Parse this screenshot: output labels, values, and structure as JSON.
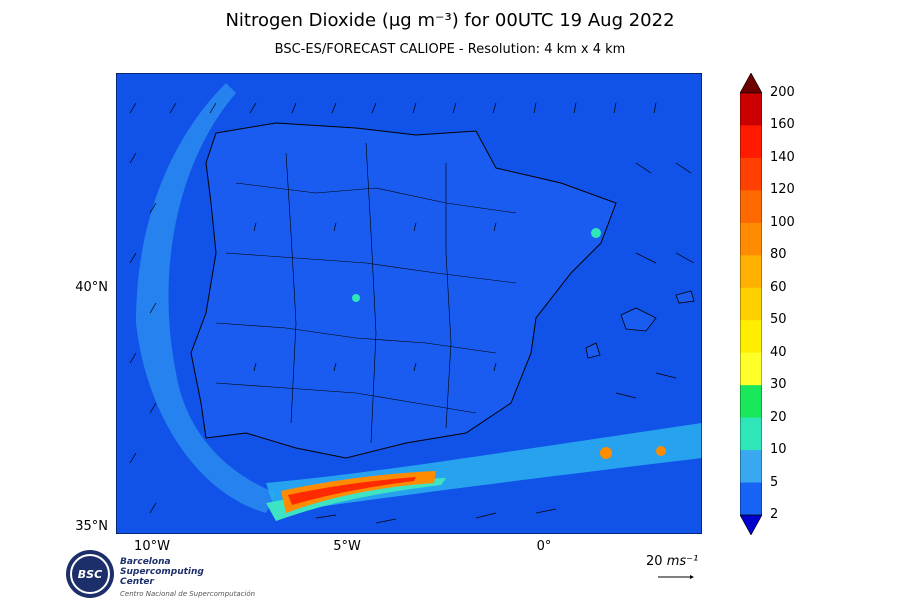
{
  "title": "Nitrogen Dioxide (μg m⁻³) for 00UTC 19 Aug 2022",
  "subtitle": "BSC-ES/FORECAST  CALIOPE - Resolution: 4 km x 4 km",
  "axes": {
    "lat_labels": [
      "40°N",
      "35°N"
    ],
    "lon_labels": [
      "10°W",
      "5°W",
      "0°"
    ]
  },
  "colorbar": {
    "ticks": [
      "200",
      "160",
      "140",
      "120",
      "100",
      "80",
      "60",
      "50",
      "40",
      "30",
      "20",
      "10",
      "5",
      "2"
    ],
    "colors": [
      "#a50000",
      "#cc0000",
      "#ff1a00",
      "#ff4000",
      "#ff6a00",
      "#ff8c00",
      "#ffb000",
      "#ffd000",
      "#ffee00",
      "#ffff2a",
      "#19e85a",
      "#2ee6b8",
      "#3aa8f0",
      "#1763f5",
      "#0a2ed8"
    ],
    "over_color": "#6e0000",
    "under_color": "#0000cc"
  },
  "wind_reference": {
    "value": "20",
    "unit": "ms⁻¹"
  },
  "logo": {
    "acronym": "BSC",
    "line1": "Barcelona",
    "line2": "Supercomputing",
    "line3": "Center",
    "subline": "Centro Nacional de Supercomputación"
  },
  "map_colors": {
    "background_low": "#0f3ce6",
    "level_5": "#1e6cf2",
    "level_10": "#2ea8f0",
    "level_20": "#3ee3c4",
    "high_orange": "#ff8c00",
    "high_red": "#ff2a00"
  }
}
